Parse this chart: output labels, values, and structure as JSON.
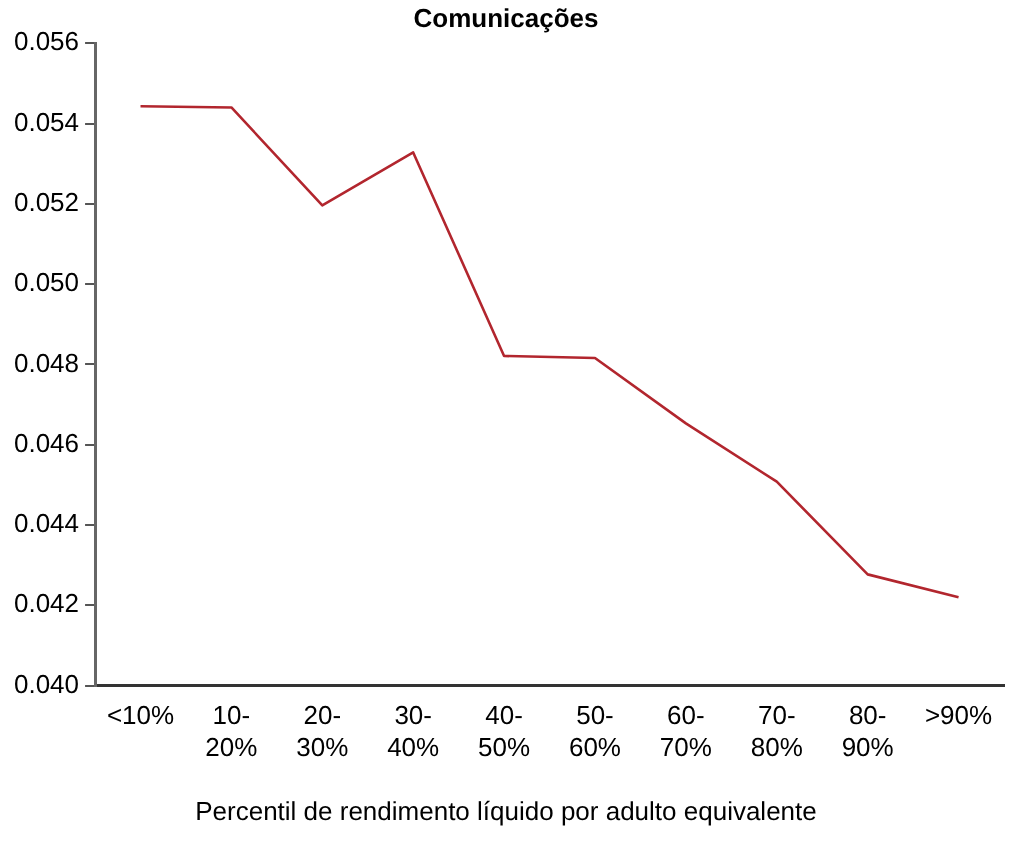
{
  "chart_data": {
    "type": "line",
    "title": "Comunicações",
    "xlabel": "Percentil de rendimento líquido por adulto equivalente",
    "categories": [
      "<10%",
      "10-20%",
      "20-30%",
      "30-40%",
      "40-50%",
      "50-60%",
      "60-70%",
      "70-80%",
      "80-90%",
      ">90%"
    ],
    "series": [
      {
        "color": "#b2262e",
        "values": [
          0.05443,
          0.0544,
          0.05196,
          0.05328,
          0.04821,
          0.04816,
          0.04653,
          0.04508,
          0.04277,
          0.0422
        ]
      }
    ],
    "ylim": [
      0.04,
      0.056
    ],
    "yticks": [
      {
        "value": 0.04,
        "label": "0.040"
      },
      0.042,
      0.044,
      0.046,
      0.048,
      {
        "value": 0.05,
        "label": "0.050"
      },
      0.052,
      0.054,
      0.056
    ],
    "grid": false,
    "legend": false,
    "marker": "none"
  }
}
